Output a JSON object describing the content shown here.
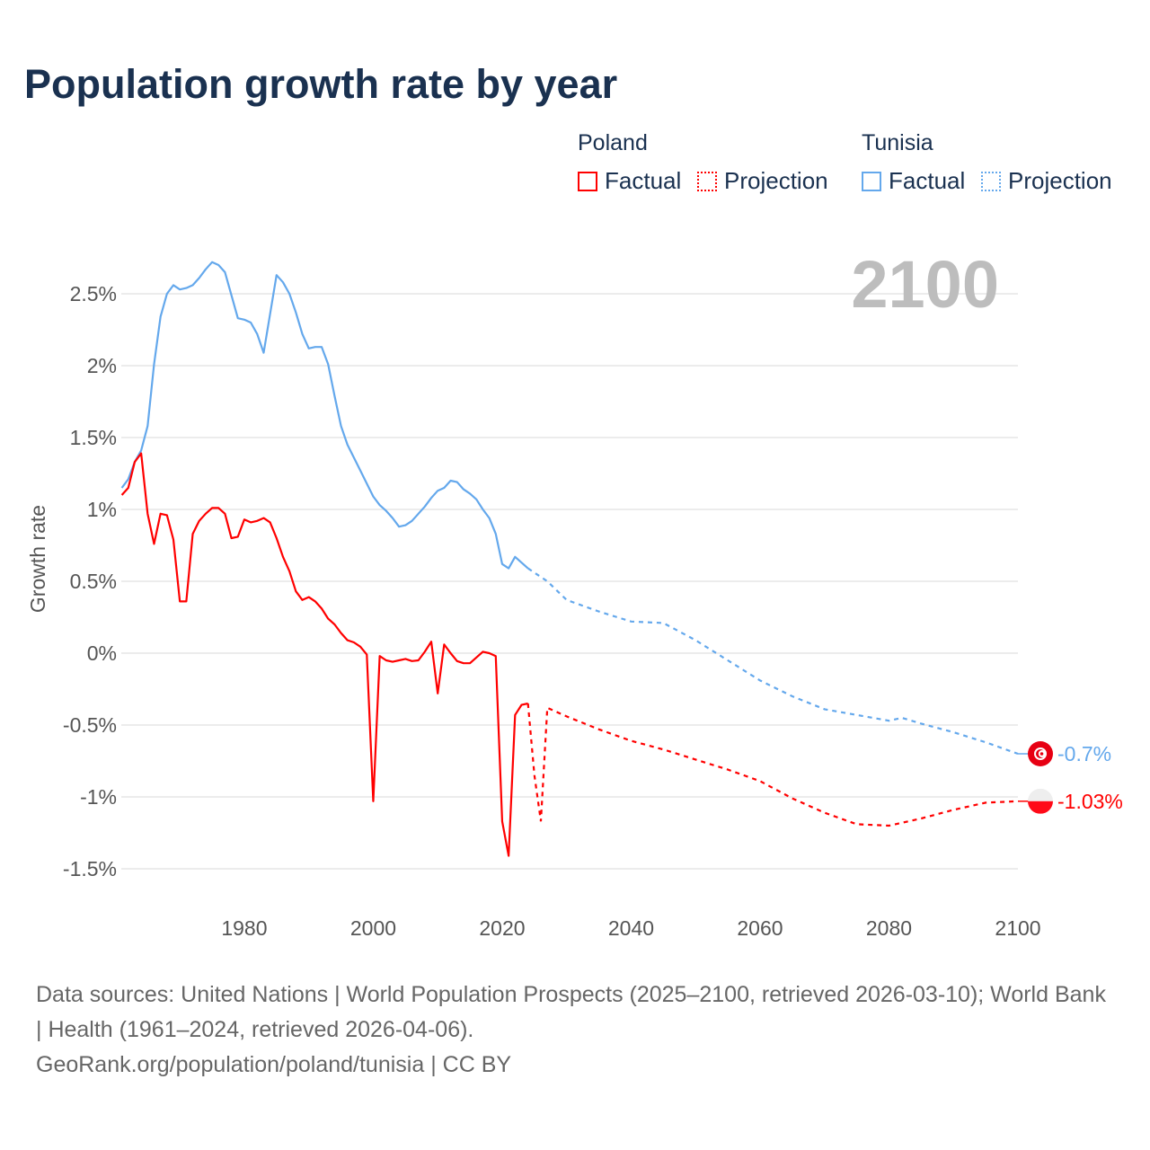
{
  "chart_data": {
    "type": "line",
    "title": "Population growth rate by year",
    "ylabel": "Growth rate",
    "xlabel": "",
    "xlim": [
      1961,
      2100
    ],
    "ylim": [
      -1.5,
      2.8
    ],
    "x_ticks": [
      1980,
      2000,
      2020,
      2040,
      2060,
      2080,
      2100
    ],
    "y_ticks": [
      {
        "v": 2.5,
        "label": "2.5%"
      },
      {
        "v": 2,
        "label": "2%"
      },
      {
        "v": 1.5,
        "label": "1.5%"
      },
      {
        "v": 1,
        "label": "1%"
      },
      {
        "v": 0.5,
        "label": "0.5%"
      },
      {
        "v": 0,
        "label": "0%"
      },
      {
        "v": -0.5,
        "label": "-0.5%"
      },
      {
        "v": -1,
        "label": "-1%"
      },
      {
        "v": -1.5,
        "label": "-1.5%"
      }
    ],
    "grid": true,
    "year_display": "2100",
    "legend": {
      "placement": "top-right",
      "groups": [
        {
          "country": "Poland",
          "factual": "Factual",
          "projection": "Projection"
        },
        {
          "country": "Tunisia",
          "factual": "Factual",
          "projection": "Projection"
        }
      ]
    },
    "series": [
      {
        "name": "Tunisia",
        "color": "#64a8ec",
        "end_label": "-0.7%",
        "flag": "tunisia-flag",
        "factual_start": 1961,
        "factual": [
          1.15,
          1.21,
          1.33,
          1.41,
          1.58,
          2.01,
          2.34,
          2.5,
          2.56,
          2.53,
          2.54,
          2.56,
          2.61,
          2.67,
          2.72,
          2.7,
          2.65,
          2.49,
          2.33,
          2.32,
          2.3,
          2.22,
          2.09,
          2.36,
          2.63,
          2.58,
          2.5,
          2.37,
          2.22,
          2.12,
          2.13,
          2.13,
          2.01,
          1.79,
          1.58,
          1.45,
          1.36,
          1.27,
          1.18,
          1.09,
          1.03,
          0.99,
          0.94,
          0.88,
          0.89,
          0.92,
          0.97,
          1.02,
          1.08,
          1.13,
          1.15,
          1.2,
          1.19,
          1.14,
          1.11,
          1.07,
          1.0,
          0.94,
          0.83,
          0.62,
          0.59,
          0.67,
          0.63,
          0.59
        ],
        "projection": [
          [
            2024,
            0.59
          ],
          [
            2027,
            0.5
          ],
          [
            2030,
            0.37
          ],
          [
            2035,
            0.29
          ],
          [
            2040,
            0.22
          ],
          [
            2045,
            0.21
          ],
          [
            2050,
            0.09
          ],
          [
            2055,
            -0.05
          ],
          [
            2060,
            -0.19
          ],
          [
            2065,
            -0.3
          ],
          [
            2070,
            -0.39
          ],
          [
            2075,
            -0.43
          ],
          [
            2080,
            -0.47
          ],
          [
            2082,
            -0.45
          ],
          [
            2085,
            -0.49
          ],
          [
            2090,
            -0.55
          ],
          [
            2095,
            -0.62
          ],
          [
            2100,
            -0.7
          ]
        ]
      },
      {
        "name": "Poland",
        "color": "#ff0000",
        "end_label": "-1.03%",
        "flag": "poland-flag",
        "factual_start": 1961,
        "factual": [
          1.1,
          1.15,
          1.33,
          1.39,
          0.97,
          0.76,
          0.97,
          0.96,
          0.79,
          0.36,
          0.36,
          0.83,
          0.92,
          0.97,
          1.01,
          1.01,
          0.97,
          0.8,
          0.81,
          0.93,
          0.91,
          0.92,
          0.94,
          0.91,
          0.8,
          0.67,
          0.57,
          0.43,
          0.37,
          0.39,
          0.36,
          0.31,
          0.24,
          0.2,
          0.14,
          0.09,
          0.075,
          0.045,
          -0.01,
          -1.03,
          -0.02,
          -0.05,
          -0.06,
          -0.05,
          -0.04,
          -0.055,
          -0.05,
          0.01,
          0.08,
          -0.28,
          0.06,
          0.0,
          -0.055,
          -0.07,
          -0.07,
          -0.03,
          0.01,
          0.0,
          -0.02,
          -1.17,
          -1.41,
          -0.43,
          -0.36,
          -0.35
        ],
        "projection": [
          [
            2024,
            -0.35
          ],
          [
            2025,
            -0.85
          ],
          [
            2026,
            -1.17
          ],
          [
            2027,
            -0.38
          ],
          [
            2030,
            -0.44
          ],
          [
            2035,
            -0.53
          ],
          [
            2040,
            -0.61
          ],
          [
            2045,
            -0.67
          ],
          [
            2050,
            -0.74
          ],
          [
            2055,
            -0.81
          ],
          [
            2060,
            -0.89
          ],
          [
            2065,
            -1.01
          ],
          [
            2070,
            -1.11
          ],
          [
            2075,
            -1.19
          ],
          [
            2080,
            -1.2
          ],
          [
            2085,
            -1.15
          ],
          [
            2090,
            -1.09
          ],
          [
            2095,
            -1.04
          ],
          [
            2100,
            -1.03
          ]
        ]
      }
    ]
  },
  "sources": {
    "line1": "Data sources: United Nations | World Population Prospects (2025–2100, retrieved 2026-03-10); World Bank | Health (1961–2024, retrieved 2026-04-06).",
    "line2": "GeoRank.org/population/poland/tunisia | CC BY"
  }
}
